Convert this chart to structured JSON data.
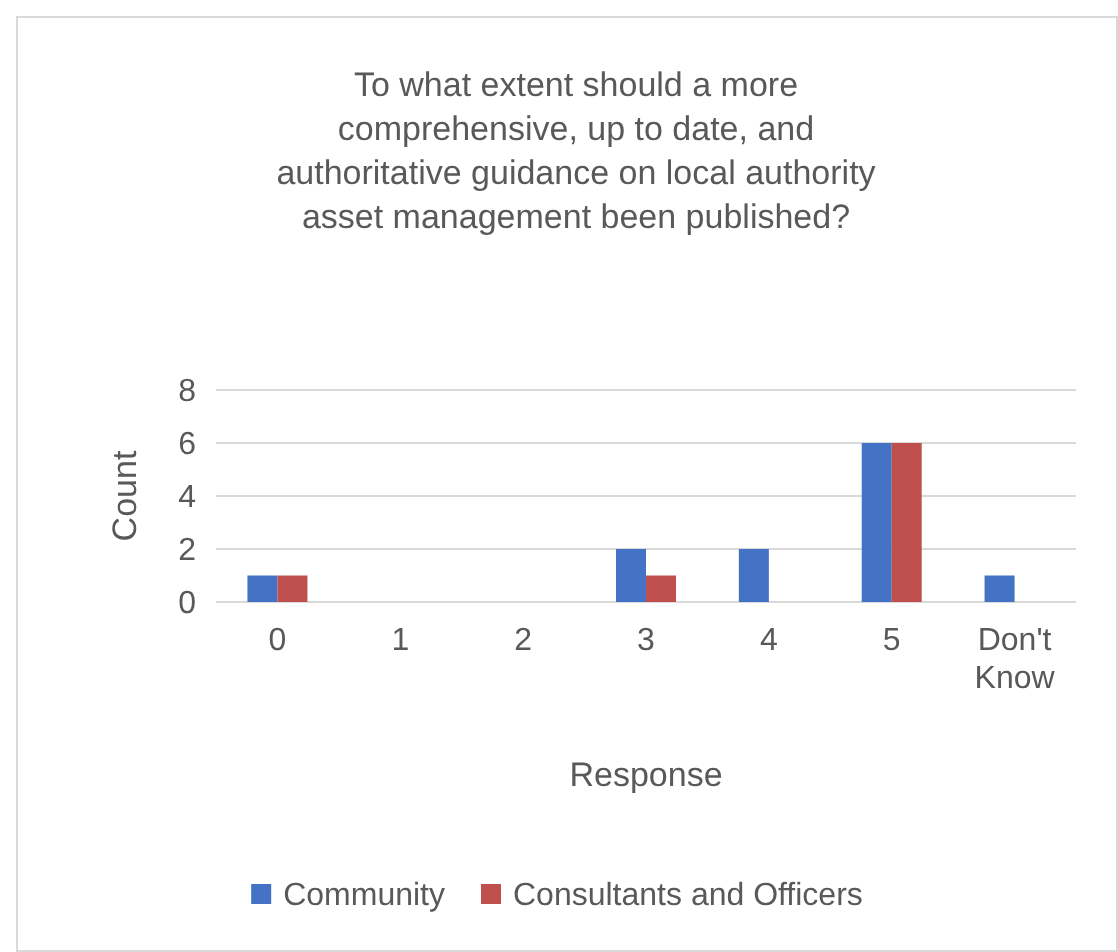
{
  "chart_data": {
    "type": "bar",
    "title": "To what extent should a more comprehensive, up to date, and authoritative guidance on local authority asset management been published?",
    "xlabel": "Response",
    "ylabel": "Count",
    "categories": [
      "0",
      "1",
      "2",
      "3",
      "4",
      "5",
      "Don't Know"
    ],
    "series": [
      {
        "name": "Community",
        "color": "#4472c4",
        "values": [
          1,
          0,
          0,
          2,
          2,
          6,
          1
        ]
      },
      {
        "name": "Consultants and Officers",
        "color": "#c0504d",
        "values": [
          1,
          0,
          0,
          1,
          0,
          6,
          0
        ]
      }
    ],
    "ylim": [
      0,
      8
    ],
    "yticks": [
      0,
      2,
      4,
      6,
      8
    ],
    "grid": "y",
    "legend": "bottom"
  }
}
